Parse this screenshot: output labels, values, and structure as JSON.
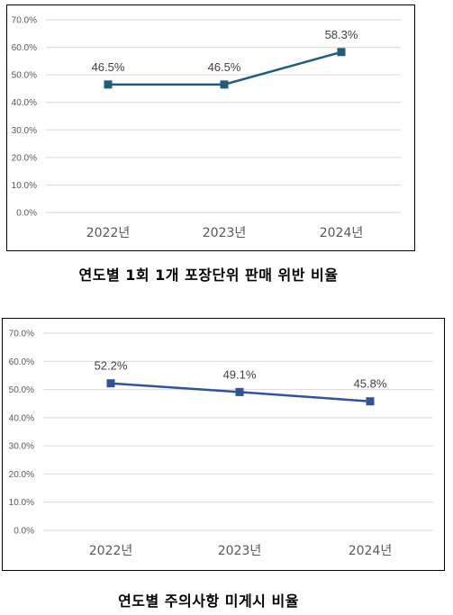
{
  "chart_data": [
    {
      "type": "line",
      "categories": [
        "2022년",
        "2023년",
        "2024년"
      ],
      "values": [
        46.5,
        46.5,
        58.3
      ],
      "data_labels": [
        "46.5%",
        "46.5%",
        "58.3%"
      ],
      "y_ticks": [
        "0.0%",
        "10.0%",
        "20.0%",
        "30.0%",
        "40.0%",
        "50.0%",
        "60.0%",
        "70.0%"
      ],
      "ylim": [
        0,
        70
      ],
      "grid": true,
      "line_color": "#1f5d7c",
      "caption": "연도별 1회 1개 포장단위 판매 위반 비율"
    },
    {
      "type": "line",
      "categories": [
        "2022년",
        "2023년",
        "2024년"
      ],
      "values": [
        52.2,
        49.1,
        45.8
      ],
      "data_labels": [
        "52.2%",
        "49.1%",
        "45.8%"
      ],
      "y_ticks": [
        "0.0%",
        "10.0%",
        "20.0%",
        "30.0%",
        "40.0%",
        "50.0%",
        "60.0%",
        "70.0%"
      ],
      "ylim": [
        0,
        70
      ],
      "grid": true,
      "line_color": "#2f5597",
      "caption": "연도별 주의사항 미게시 비율"
    }
  ]
}
